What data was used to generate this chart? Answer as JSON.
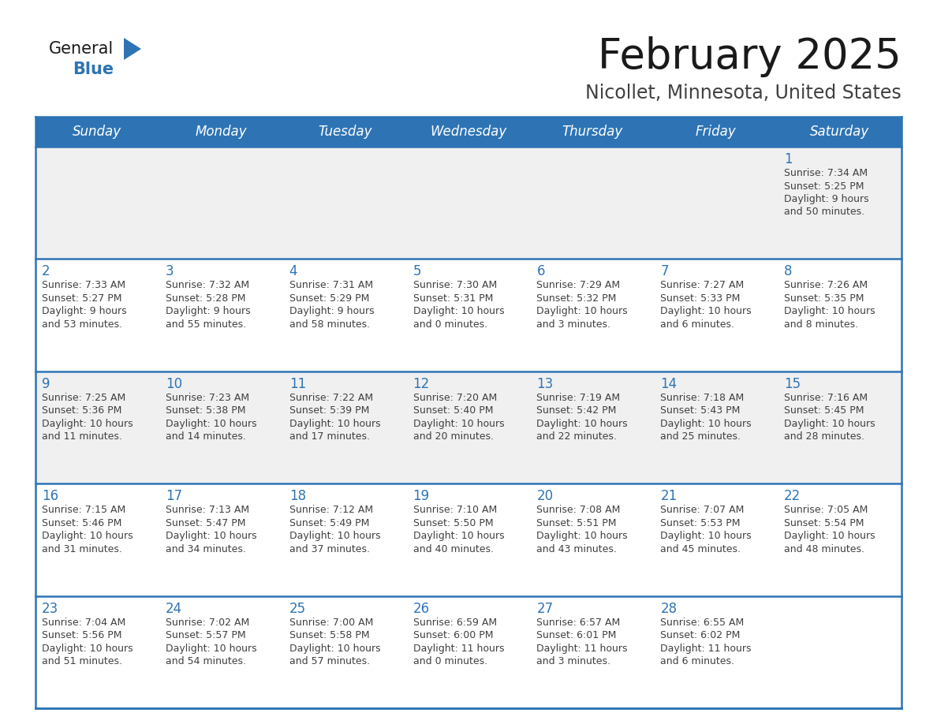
{
  "title": "February 2025",
  "subtitle": "Nicollet, Minnesota, United States",
  "header_bg": "#2E74B5",
  "header_text_color": "#FFFFFF",
  "cell_bg_white": "#FFFFFF",
  "cell_bg_gray": "#F0F0F0",
  "day_number_color": "#2E74B5",
  "text_color": "#404040",
  "border_color": "#2E74B5",
  "days_of_week": [
    "Sunday",
    "Monday",
    "Tuesday",
    "Wednesday",
    "Thursday",
    "Friday",
    "Saturday"
  ],
  "row_bg": [
    "#F0F0F0",
    "#FFFFFF",
    "#F0F0F0",
    "#FFFFFF",
    "#FFFFFF"
  ],
  "calendar_data": [
    [
      null,
      null,
      null,
      null,
      null,
      null,
      {
        "day": "1",
        "sunrise": "7:34 AM",
        "sunset": "5:25 PM",
        "daylight_line1": "Daylight: 9 hours",
        "daylight_line2": "and 50 minutes."
      }
    ],
    [
      {
        "day": "2",
        "sunrise": "7:33 AM",
        "sunset": "5:27 PM",
        "daylight_line1": "Daylight: 9 hours",
        "daylight_line2": "and 53 minutes."
      },
      {
        "day": "3",
        "sunrise": "7:32 AM",
        "sunset": "5:28 PM",
        "daylight_line1": "Daylight: 9 hours",
        "daylight_line2": "and 55 minutes."
      },
      {
        "day": "4",
        "sunrise": "7:31 AM",
        "sunset": "5:29 PM",
        "daylight_line1": "Daylight: 9 hours",
        "daylight_line2": "and 58 minutes."
      },
      {
        "day": "5",
        "sunrise": "7:30 AM",
        "sunset": "5:31 PM",
        "daylight_line1": "Daylight: 10 hours",
        "daylight_line2": "and 0 minutes."
      },
      {
        "day": "6",
        "sunrise": "7:29 AM",
        "sunset": "5:32 PM",
        "daylight_line1": "Daylight: 10 hours",
        "daylight_line2": "and 3 minutes."
      },
      {
        "day": "7",
        "sunrise": "7:27 AM",
        "sunset": "5:33 PM",
        "daylight_line1": "Daylight: 10 hours",
        "daylight_line2": "and 6 minutes."
      },
      {
        "day": "8",
        "sunrise": "7:26 AM",
        "sunset": "5:35 PM",
        "daylight_line1": "Daylight: 10 hours",
        "daylight_line2": "and 8 minutes."
      }
    ],
    [
      {
        "day": "9",
        "sunrise": "7:25 AM",
        "sunset": "5:36 PM",
        "daylight_line1": "Daylight: 10 hours",
        "daylight_line2": "and 11 minutes."
      },
      {
        "day": "10",
        "sunrise": "7:23 AM",
        "sunset": "5:38 PM",
        "daylight_line1": "Daylight: 10 hours",
        "daylight_line2": "and 14 minutes."
      },
      {
        "day": "11",
        "sunrise": "7:22 AM",
        "sunset": "5:39 PM",
        "daylight_line1": "Daylight: 10 hours",
        "daylight_line2": "and 17 minutes."
      },
      {
        "day": "12",
        "sunrise": "7:20 AM",
        "sunset": "5:40 PM",
        "daylight_line1": "Daylight: 10 hours",
        "daylight_line2": "and 20 minutes."
      },
      {
        "day": "13",
        "sunrise": "7:19 AM",
        "sunset": "5:42 PM",
        "daylight_line1": "Daylight: 10 hours",
        "daylight_line2": "and 22 minutes."
      },
      {
        "day": "14",
        "sunrise": "7:18 AM",
        "sunset": "5:43 PM",
        "daylight_line1": "Daylight: 10 hours",
        "daylight_line2": "and 25 minutes."
      },
      {
        "day": "15",
        "sunrise": "7:16 AM",
        "sunset": "5:45 PM",
        "daylight_line1": "Daylight: 10 hours",
        "daylight_line2": "and 28 minutes."
      }
    ],
    [
      {
        "day": "16",
        "sunrise": "7:15 AM",
        "sunset": "5:46 PM",
        "daylight_line1": "Daylight: 10 hours",
        "daylight_line2": "and 31 minutes."
      },
      {
        "day": "17",
        "sunrise": "7:13 AM",
        "sunset": "5:47 PM",
        "daylight_line1": "Daylight: 10 hours",
        "daylight_line2": "and 34 minutes."
      },
      {
        "day": "18",
        "sunrise": "7:12 AM",
        "sunset": "5:49 PM",
        "daylight_line1": "Daylight: 10 hours",
        "daylight_line2": "and 37 minutes."
      },
      {
        "day": "19",
        "sunrise": "7:10 AM",
        "sunset": "5:50 PM",
        "daylight_line1": "Daylight: 10 hours",
        "daylight_line2": "and 40 minutes."
      },
      {
        "day": "20",
        "sunrise": "7:08 AM",
        "sunset": "5:51 PM",
        "daylight_line1": "Daylight: 10 hours",
        "daylight_line2": "and 43 minutes."
      },
      {
        "day": "21",
        "sunrise": "7:07 AM",
        "sunset": "5:53 PM",
        "daylight_line1": "Daylight: 10 hours",
        "daylight_line2": "and 45 minutes."
      },
      {
        "day": "22",
        "sunrise": "7:05 AM",
        "sunset": "5:54 PM",
        "daylight_line1": "Daylight: 10 hours",
        "daylight_line2": "and 48 minutes."
      }
    ],
    [
      {
        "day": "23",
        "sunrise": "7:04 AM",
        "sunset": "5:56 PM",
        "daylight_line1": "Daylight: 10 hours",
        "daylight_line2": "and 51 minutes."
      },
      {
        "day": "24",
        "sunrise": "7:02 AM",
        "sunset": "5:57 PM",
        "daylight_line1": "Daylight: 10 hours",
        "daylight_line2": "and 54 minutes."
      },
      {
        "day": "25",
        "sunrise": "7:00 AM",
        "sunset": "5:58 PM",
        "daylight_line1": "Daylight: 10 hours",
        "daylight_line2": "and 57 minutes."
      },
      {
        "day": "26",
        "sunrise": "6:59 AM",
        "sunset": "6:00 PM",
        "daylight_line1": "Daylight: 11 hours",
        "daylight_line2": "and 0 minutes."
      },
      {
        "day": "27",
        "sunrise": "6:57 AM",
        "sunset": "6:01 PM",
        "daylight_line1": "Daylight: 11 hours",
        "daylight_line2": "and 3 minutes."
      },
      {
        "day": "28",
        "sunrise": "6:55 AM",
        "sunset": "6:02 PM",
        "daylight_line1": "Daylight: 11 hours",
        "daylight_line2": "and 6 minutes."
      },
      null
    ]
  ],
  "logo_general_color": "#1a1a1a",
  "logo_blue_color": "#2E74B5",
  "logo_triangle_color": "#2E74B5"
}
